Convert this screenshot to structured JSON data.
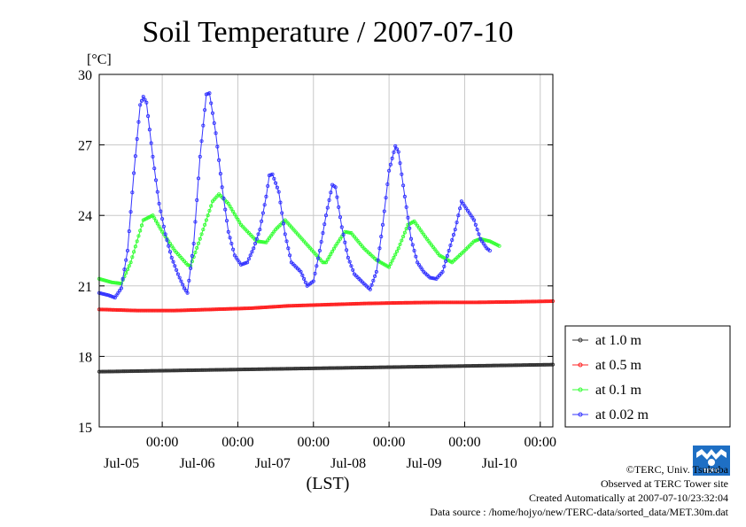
{
  "chart_data": {
    "type": "line",
    "title": "Soil Temperature / 2007-07-10",
    "ylabel": "[°C]",
    "xlabel": "(LST)",
    "ylim": [
      15,
      30
    ],
    "yticks": [
      "30",
      "27",
      "24",
      "21",
      "18",
      "15"
    ],
    "x_unit": "hours",
    "xlim": [
      0,
      144
    ],
    "xticks": [
      {
        "x": 20,
        "time": "00:00",
        "date": "Jul-05"
      },
      {
        "x": 44,
        "time": "00:00",
        "date": "Jul-06"
      },
      {
        "x": 68,
        "time": "00:00",
        "date": "Jul-07"
      },
      {
        "x": 92,
        "time": "00:00",
        "date": "Jul-08"
      },
      {
        "x": 116,
        "time": "00:00",
        "date": "Jul-09"
      },
      {
        "x": 140,
        "time": "00:00",
        "date": "Jul-10"
      }
    ],
    "grid": true,
    "legend_position": "right",
    "series": [
      {
        "name": "at 1.0 m",
        "color": "#333333",
        "points": [
          [
            0,
            17.35
          ],
          [
            24,
            17.4
          ],
          [
            48,
            17.45
          ],
          [
            72,
            17.5
          ],
          [
            96,
            17.55
          ],
          [
            120,
            17.6
          ],
          [
            144,
            17.65
          ]
        ]
      },
      {
        "name": "at 0.5 m",
        "color": "#ff2020",
        "points": [
          [
            0,
            20.0
          ],
          [
            12,
            19.95
          ],
          [
            24,
            19.95
          ],
          [
            36,
            20.0
          ],
          [
            48,
            20.05
          ],
          [
            60,
            20.15
          ],
          [
            72,
            20.2
          ],
          [
            84,
            20.25
          ],
          [
            96,
            20.28
          ],
          [
            108,
            20.3
          ],
          [
            120,
            20.3
          ],
          [
            132,
            20.32
          ],
          [
            144,
            20.35
          ]
        ]
      },
      {
        "name": "at 0.1 m",
        "color": "#33ff33",
        "points": [
          [
            0,
            21.3
          ],
          [
            4,
            21.15
          ],
          [
            7,
            21.1
          ],
          [
            10,
            22.0
          ],
          [
            14,
            23.8
          ],
          [
            17,
            24.0
          ],
          [
            20,
            23.3
          ],
          [
            24,
            22.5
          ],
          [
            28,
            21.9
          ],
          [
            29,
            21.85
          ],
          [
            32,
            23.0
          ],
          [
            36,
            24.6
          ],
          [
            38,
            24.9
          ],
          [
            41,
            24.5
          ],
          [
            45,
            23.6
          ],
          [
            50,
            22.9
          ],
          [
            53,
            22.85
          ],
          [
            56,
            23.4
          ],
          [
            59,
            23.8
          ],
          [
            63,
            23.2
          ],
          [
            67,
            22.6
          ],
          [
            71,
            22.0
          ],
          [
            72,
            22.0
          ],
          [
            75,
            22.7
          ],
          [
            78,
            23.3
          ],
          [
            80,
            23.25
          ],
          [
            84,
            22.6
          ],
          [
            88,
            22.1
          ],
          [
            92,
            21.8
          ],
          [
            95,
            22.6
          ],
          [
            98,
            23.6
          ],
          [
            100,
            23.75
          ],
          [
            104,
            23.0
          ],
          [
            108,
            22.3
          ],
          [
            112,
            22.0
          ],
          [
            116,
            22.5
          ],
          [
            119,
            22.9
          ],
          [
            121,
            23.0
          ],
          [
            124,
            22.9
          ],
          [
            127,
            22.7
          ]
        ]
      },
      {
        "name": "at 0.02 m",
        "color": "#3333ff",
        "points": [
          [
            0,
            20.7
          ],
          [
            3,
            20.6
          ],
          [
            5,
            20.5
          ],
          [
            7,
            20.9
          ],
          [
            9,
            22.5
          ],
          [
            11,
            25.8
          ],
          [
            13,
            28.7
          ],
          [
            14,
            29.05
          ],
          [
            15,
            28.8
          ],
          [
            17,
            26.5
          ],
          [
            19,
            24.5
          ],
          [
            21,
            23.2
          ],
          [
            23,
            22.2
          ],
          [
            25,
            21.5
          ],
          [
            27,
            20.9
          ],
          [
            28,
            20.7
          ],
          [
            30,
            22.8
          ],
          [
            32,
            26.5
          ],
          [
            34,
            29.15
          ],
          [
            35,
            29.2
          ],
          [
            37,
            27.5
          ],
          [
            39,
            25.2
          ],
          [
            41,
            23.3
          ],
          [
            43,
            22.3
          ],
          [
            45,
            21.9
          ],
          [
            47,
            22.0
          ],
          [
            49,
            22.6
          ],
          [
            51,
            23.4
          ],
          [
            53,
            24.8
          ],
          [
            54,
            25.7
          ],
          [
            55,
            25.75
          ],
          [
            57,
            25.0
          ],
          [
            59,
            23.2
          ],
          [
            61,
            22.0
          ],
          [
            64,
            21.6
          ],
          [
            66,
            21.0
          ],
          [
            68,
            21.2
          ],
          [
            70,
            22.5
          ],
          [
            72,
            24.0
          ],
          [
            74,
            25.3
          ],
          [
            75,
            25.2
          ],
          [
            77,
            23.5
          ],
          [
            79,
            22.2
          ],
          [
            81,
            21.5
          ],
          [
            84,
            21.1
          ],
          [
            86,
            20.85
          ],
          [
            88,
            21.6
          ],
          [
            90,
            23.6
          ],
          [
            92,
            25.9
          ],
          [
            94,
            26.95
          ],
          [
            95,
            26.7
          ],
          [
            97,
            24.8
          ],
          [
            99,
            23.0
          ],
          [
            101,
            22.0
          ],
          [
            103,
            21.6
          ],
          [
            105,
            21.35
          ],
          [
            107,
            21.3
          ],
          [
            109,
            21.6
          ],
          [
            111,
            22.5
          ],
          [
            113,
            23.4
          ],
          [
            115,
            24.6
          ],
          [
            117,
            24.2
          ],
          [
            119,
            23.8
          ],
          [
            121,
            23.0
          ],
          [
            123,
            22.6
          ],
          [
            124,
            22.5
          ]
        ]
      }
    ]
  },
  "footer": {
    "credit": "©TERC, Univ. Tsukuba",
    "observed": "Observed at TERC Tower site",
    "created": "Created Automatically at 2007-07-10/23:32:04",
    "source": "Data source : /home/hojyo/new/TERC-data/sorted_data/MET.30m.dat",
    "logo_text": "TERC"
  }
}
